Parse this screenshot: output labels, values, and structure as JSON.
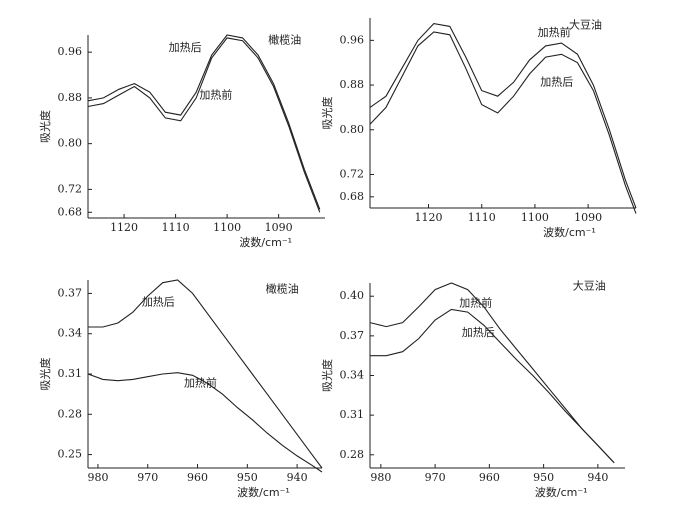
{
  "chart_data": [
    {
      "type": "line",
      "title": "橄榄油",
      "xlabel": "波数/cm⁻¹",
      "ylabel": "吸光度",
      "x": [
        1127,
        1124,
        1121,
        1118,
        1115,
        1112,
        1109,
        1106,
        1103,
        1100,
        1097,
        1094,
        1091,
        1088,
        1085,
        1082
      ],
      "series": [
        {
          "name": "加热前",
          "color": "#222",
          "values": [
            0.865,
            0.87,
            0.885,
            0.9,
            0.88,
            0.845,
            0.84,
            0.88,
            0.95,
            0.985,
            0.98,
            0.95,
            0.9,
            0.83,
            0.75,
            0.68
          ]
        },
        {
          "name": "加热后",
          "color": "#222",
          "values": [
            0.875,
            0.88,
            0.895,
            0.905,
            0.89,
            0.855,
            0.85,
            0.89,
            0.955,
            0.99,
            0.985,
            0.955,
            0.905,
            0.835,
            0.755,
            0.685
          ]
        }
      ],
      "xlim": [
        1127,
        1081
      ],
      "xticks": [
        1120,
        1110,
        1100,
        1090
      ],
      "ylim": [
        0.67,
        0.99
      ],
      "yticks": [
        0.68,
        0.72,
        {
          "value": 0.8,
          "label": "0.80"
        },
        0.88,
        0.96
      ]
    },
    {
      "type": "line",
      "title": "大豆油",
      "xlabel": "波数/cm⁻¹",
      "ylabel": "吸光度",
      "x": [
        1131,
        1128,
        1125,
        1122,
        1119,
        1116,
        1113,
        1110,
        1107,
        1104,
        1101,
        1098,
        1095,
        1092,
        1089,
        1086,
        1083,
        1081
      ],
      "series": [
        {
          "name": "加热前",
          "color": "#222",
          "values": [
            0.84,
            0.86,
            0.91,
            0.96,
            0.99,
            0.985,
            0.93,
            0.87,
            0.86,
            0.885,
            0.925,
            0.95,
            0.955,
            0.935,
            0.88,
            0.8,
            0.71,
            0.66
          ]
        },
        {
          "name": "加热后",
          "color": "#222",
          "values": [
            0.81,
            0.84,
            0.895,
            0.95,
            0.975,
            0.97,
            0.91,
            0.845,
            0.83,
            0.86,
            0.9,
            0.93,
            0.935,
            0.92,
            0.87,
            0.79,
            0.7,
            0.65
          ]
        }
      ],
      "xlim": [
        1131,
        1081
      ],
      "xticks": [
        1120,
        1110,
        1100,
        1090
      ],
      "ylim": [
        0.66,
        1.0
      ],
      "yticks": [
        0.68,
        0.72,
        {
          "value": 0.8,
          "label": "0.80"
        },
        0.88,
        0.96
      ]
    },
    {
      "type": "line",
      "title": "橄榄油",
      "xlabel": "波数/cm⁻¹",
      "ylabel": "吸光度",
      "x": [
        982,
        979,
        976,
        973,
        970,
        967,
        964,
        961,
        958,
        955,
        952,
        949,
        946,
        943,
        940,
        937,
        935
      ],
      "series": [
        {
          "name": "加热前",
          "color": "#222",
          "values": [
            0.31,
            0.306,
            0.305,
            0.306,
            0.308,
            0.31,
            0.311,
            0.309,
            0.303,
            0.295,
            0.285,
            0.276,
            0.266,
            0.257,
            0.249,
            0.242,
            0.237
          ]
        },
        {
          "name": "加热后",
          "color": "#222",
          "values": [
            0.345,
            0.345,
            0.348,
            0.356,
            0.368,
            0.378,
            0.38,
            0.37,
            0.355,
            0.34,
            0.325,
            0.31,
            0.295,
            0.28,
            0.265,
            0.25,
            0.24
          ]
        }
      ],
      "xlim": [
        982,
        935
      ],
      "xticks": [
        980,
        970,
        960,
        950,
        940
      ],
      "ylim": [
        0.24,
        0.38
      ],
      "yticks": [
        0.25,
        0.28,
        0.31,
        0.34,
        0.37
      ]
    },
    {
      "type": "line",
      "title": "大豆油",
      "xlabel": "波数/cm⁻¹",
      "ylabel": "吸光度",
      "x": [
        982,
        979,
        976,
        973,
        970,
        967,
        964,
        961,
        958,
        955,
        952,
        949,
        946,
        943,
        940,
        937
      ],
      "series": [
        {
          "name": "加热前",
          "color": "#222",
          "values": [
            0.38,
            0.377,
            0.38,
            0.392,
            0.405,
            0.41,
            0.405,
            0.392,
            0.375,
            0.36,
            0.345,
            0.33,
            0.315,
            0.3,
            0.287,
            0.274
          ]
        },
        {
          "name": "加热后",
          "color": "#222",
          "values": [
            0.355,
            0.355,
            0.358,
            0.368,
            0.382,
            0.39,
            0.388,
            0.378,
            0.365,
            0.352,
            0.34,
            0.327,
            0.313,
            0.3,
            0.287,
            0.274
          ]
        }
      ],
      "xlim": [
        982,
        935
      ],
      "xticks": [
        980,
        970,
        960,
        950,
        940
      ],
      "ylim": [
        0.27,
        0.41
      ],
      "yticks": [
        0.28,
        0.31,
        0.34,
        0.37,
        {
          "value": 0.4,
          "label": "0.40"
        }
      ]
    }
  ]
}
